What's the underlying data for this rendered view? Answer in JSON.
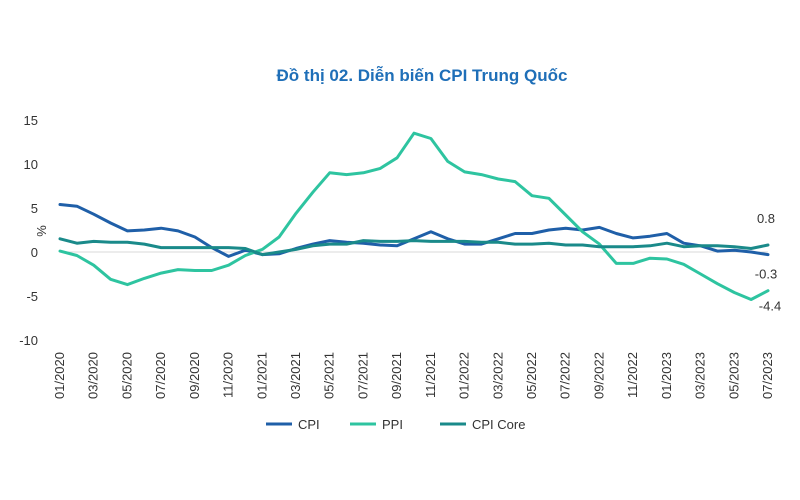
{
  "chart_data": {
    "type": "line",
    "title": "Đồ thị 02. Diễn biến CPI Trung Quốc",
    "ylabel": "%",
    "ylim": [
      -10,
      15
    ],
    "yticks": [
      15,
      10,
      5,
      0,
      -5,
      -10
    ],
    "x": [
      "01/2020",
      "02/2020",
      "03/2020",
      "04/2020",
      "05/2020",
      "06/2020",
      "07/2020",
      "08/2020",
      "09/2020",
      "10/2020",
      "11/2020",
      "12/2020",
      "01/2021",
      "02/2021",
      "03/2021",
      "04/2021",
      "05/2021",
      "06/2021",
      "07/2021",
      "08/2021",
      "09/2021",
      "10/2021",
      "11/2021",
      "12/2021",
      "01/2022",
      "02/2022",
      "03/2022",
      "04/2022",
      "05/2022",
      "06/2022",
      "07/2022",
      "08/2022",
      "09/2022",
      "10/2022",
      "11/2022",
      "12/2022",
      "01/2023",
      "02/2023",
      "03/2023",
      "04/2023",
      "05/2023",
      "06/2023",
      "07/2023"
    ],
    "xtick_labels": [
      "01/2020",
      "03/2020",
      "05/2020",
      "07/2020",
      "09/2020",
      "11/2020",
      "01/2021",
      "03/2021",
      "05/2021",
      "07/2021",
      "09/2021",
      "11/2021",
      "01/2022",
      "03/2022",
      "05/2022",
      "07/2022",
      "09/2022",
      "11/2022",
      "01/2023",
      "03/2023",
      "05/2023",
      "07/2023"
    ],
    "series": [
      {
        "name": "CPI",
        "color": "#1f5fa8",
        "values": [
          5.4,
          5.2,
          4.3,
          3.3,
          2.4,
          2.5,
          2.7,
          2.4,
          1.7,
          0.5,
          -0.5,
          0.2,
          -0.3,
          -0.2,
          0.4,
          0.9,
          1.3,
          1.1,
          1.0,
          0.8,
          0.7,
          1.5,
          2.3,
          1.5,
          0.9,
          0.9,
          1.5,
          2.1,
          2.1,
          2.5,
          2.7,
          2.5,
          2.8,
          2.1,
          1.6,
          1.8,
          2.1,
          1.0,
          0.7,
          0.1,
          0.2,
          0.0,
          -0.3
        ]
      },
      {
        "name": "PPI",
        "color": "#2ec4a0",
        "values": [
          0.1,
          -0.4,
          -1.5,
          -3.1,
          -3.7,
          -3.0,
          -2.4,
          -2.0,
          -2.1,
          -2.1,
          -1.5,
          -0.4,
          0.3,
          1.7,
          4.4,
          6.8,
          9.0,
          8.8,
          9.0,
          9.5,
          10.7,
          13.5,
          12.9,
          10.3,
          9.1,
          8.8,
          8.3,
          8.0,
          6.4,
          6.1,
          4.2,
          2.3,
          0.9,
          -1.3,
          -1.3,
          -0.7,
          -0.8,
          -1.4,
          -2.5,
          -3.6,
          -4.6,
          -5.4,
          -4.4
        ]
      },
      {
        "name": "CPI Core",
        "color": "#1a8a8a",
        "values": [
          1.5,
          1.0,
          1.2,
          1.1,
          1.1,
          0.9,
          0.5,
          0.5,
          0.5,
          0.5,
          0.5,
          0.4,
          -0.3,
          0.0,
          0.3,
          0.7,
          0.9,
          0.9,
          1.3,
          1.2,
          1.2,
          1.3,
          1.2,
          1.2,
          1.2,
          1.1,
          1.1,
          0.9,
          0.9,
          1.0,
          0.8,
          0.8,
          0.6,
          0.6,
          0.6,
          0.7,
          1.0,
          0.6,
          0.7,
          0.7,
          0.6,
          0.4,
          0.8
        ]
      }
    ],
    "annotations": [
      "0.8",
      "-0.3",
      "-4.4"
    ],
    "legend_position": "bottom"
  }
}
